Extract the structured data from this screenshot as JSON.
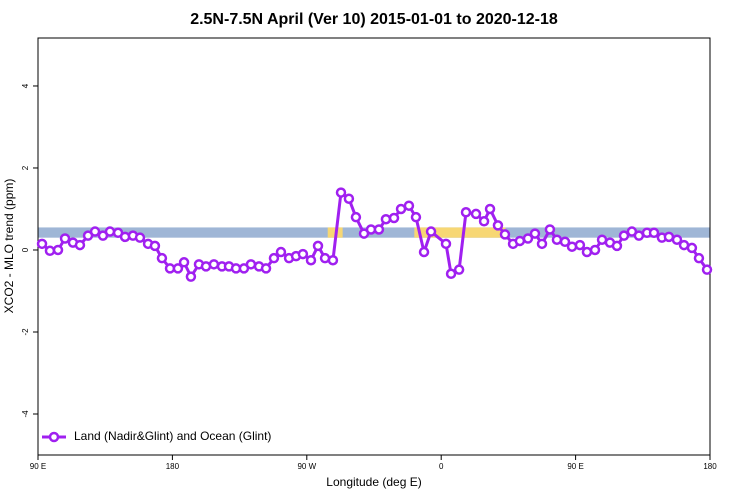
{
  "chart_data": {
    "type": "line",
    "title": "2.5N-7.5N April (Ver 10)   2015-01-01 to 2020-12-18",
    "x_label": "Longitude (deg E)",
    "y_label": "XCO2 - MLO trend (ppm)",
    "xlim": [
      90,
      540
    ],
    "ylim": [
      -5,
      5.17
    ],
    "xticks": [
      {
        "value": 90,
        "label": "90 E"
      },
      180,
      {
        "value": 270,
        "label": "90 W"
      },
      {
        "value": 360,
        "label": "0"
      },
      {
        "value": 450,
        "label": "90 E"
      },
      {
        "value": 540,
        "label": "180"
      }
    ],
    "yticks": [
      -4,
      -2,
      0,
      2,
      4
    ],
    "legend": "bottom-left",
    "band": {
      "ylim": [
        0.3,
        0.55
      ],
      "color": "#9fb6d6",
      "land_color": "#f7d774",
      "land": [
        [
          284,
          294
        ],
        [
          342,
          403
        ]
      ]
    },
    "x": [
      92.7,
      98.0,
      103.4,
      108.1,
      113.4,
      118.1,
      123.5,
      128.2,
      133.5,
      138.2,
      143.6,
      148.3,
      153.6,
      158.3,
      163.7,
      168.3,
      173.0,
      178.4,
      183.7,
      187.8,
      192.4,
      197.8,
      202.5,
      207.8,
      213.2,
      217.9,
      222.6,
      227.9,
      232.6,
      238.0,
      242.7,
      248.0,
      252.7,
      258.1,
      262.8,
      267.4,
      272.8,
      277.5,
      282.2,
      287.5,
      292.9,
      298.2,
      302.9,
      308.3,
      313.0,
      318.3,
      323.0,
      328.4,
      333.1,
      338.4,
      343.1,
      348.5,
      353.2,
      363.2,
      366.6,
      372.0,
      376.6,
      383.3,
      388.7,
      392.7,
      398.0,
      402.7,
      408.1,
      412.7,
      418.1,
      422.8,
      427.5,
      432.8,
      437.5,
      442.9,
      447.6,
      452.9,
      457.6,
      463.0,
      467.7,
      473.0,
      477.7,
      482.4,
      487.7,
      492.4,
      497.8,
      502.5,
      507.8,
      512.5,
      517.9,
      522.6,
      527.9,
      532.6,
      538.0
    ],
    "series": [
      {
        "name": "Land (Nadir&Glint) and Ocean (Glint)",
        "color": "#a020f0",
        "values": [
          0.15,
          -0.02,
          0.0,
          0.28,
          0.18,
          0.12,
          0.35,
          0.45,
          0.35,
          0.45,
          0.42,
          0.32,
          0.35,
          0.3,
          0.15,
          0.1,
          -0.2,
          -0.45,
          -0.45,
          -0.3,
          -0.65,
          -0.35,
          -0.4,
          -0.35,
          -0.4,
          -0.4,
          -0.45,
          -0.45,
          -0.35,
          -0.4,
          -0.45,
          -0.2,
          -0.05,
          -0.2,
          -0.15,
          -0.1,
          -0.25,
          0.1,
          -0.2,
          -0.25,
          1.4,
          1.25,
          0.8,
          0.4,
          0.5,
          0.5,
          0.75,
          0.78,
          1.0,
          1.08,
          0.8,
          -0.05,
          0.45,
          0.15,
          -0.58,
          -0.48,
          0.92,
          0.88,
          0.7,
          1.0,
          0.6,
          0.38,
          0.15,
          0.22,
          0.28,
          0.4,
          0.15,
          0.5,
          0.25,
          0.2,
          0.08,
          0.12,
          -0.05,
          0.0,
          0.25,
          0.18,
          0.1,
          0.35,
          0.45,
          0.35,
          0.42,
          0.42,
          0.3,
          0.32,
          0.25,
          0.12,
          0.05,
          -0.2,
          -0.48
        ]
      }
    ]
  }
}
